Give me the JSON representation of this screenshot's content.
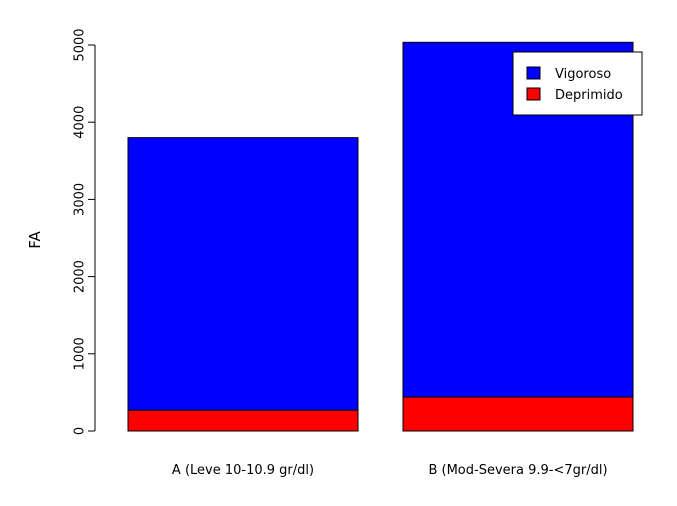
{
  "chart_data": {
    "type": "bar",
    "stacked": true,
    "title": "",
    "xlabel": "",
    "ylabel": "FA",
    "ylim": [
      0,
      5000
    ],
    "yticks": [
      0,
      1000,
      2000,
      3000,
      4000,
      5000
    ],
    "categories": [
      "A (Leve 10-10.9 gr/dl)",
      "B  (Mod-Severa 9.9-<7gr/dl)"
    ],
    "series": [
      {
        "name": "Deprimido",
        "color": "#ff0000",
        "values": [
          270,
          440
        ]
      },
      {
        "name": "Vigoroso",
        "color": "#0000ff",
        "values": [
          3530,
          4595
        ]
      }
    ],
    "legend": {
      "position": "top-right",
      "entries": [
        {
          "label": "Vigoroso",
          "color": "#0000ff"
        },
        {
          "label": "Deprimido",
          "color": "#ff0000"
        }
      ]
    },
    "grid": false
  }
}
